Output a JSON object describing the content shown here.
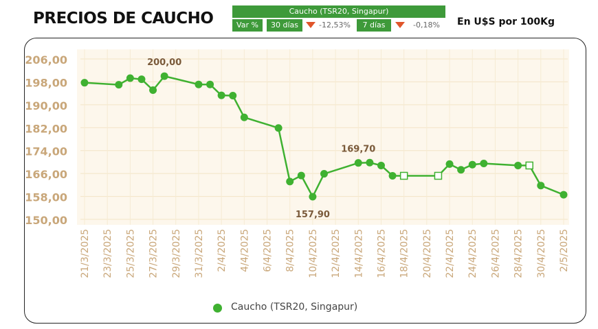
{
  "header": {
    "title": "PRECIOS DE CAUCHO",
    "units": "En U$S por 100Kg"
  },
  "summary_box": {
    "title": "Caucho (TSR20, Singapur)",
    "var_label": "Var %",
    "period1_label": "30 días",
    "period1_value": "-12,53%",
    "period2_label": "7 días",
    "period2_value": "-0,18%"
  },
  "legend": {
    "label": "Caucho (TSR20, Singapur)"
  },
  "colors": {
    "line": "#3fb131",
    "down_arrow": "#e0552a",
    "axis_text": "#c9a77a",
    "box_green": "#3e9a3a"
  },
  "chart_data": {
    "type": "line",
    "series": [
      {
        "name": "Caucho (TSR20, Singapur)",
        "points": [
          {
            "x": "21/3/2025",
            "y": 197.7
          },
          {
            "x": "24/3/2025",
            "y": 197.0
          },
          {
            "x": "25/3/2025",
            "y": 199.3
          },
          {
            "x": "26/3/2025",
            "y": 198.9
          },
          {
            "x": "27/3/2025",
            "y": 195.1
          },
          {
            "x": "28/3/2025",
            "y": 200.0
          },
          {
            "x": "31/3/2025",
            "y": 197.1
          },
          {
            "x": "1/4/2025",
            "y": 197.1
          },
          {
            "x": "2/4/2025",
            "y": 193.3
          },
          {
            "x": "3/4/2025",
            "y": 193.2
          },
          {
            "x": "4/4/2025",
            "y": 185.6
          },
          {
            "x": "7/4/2025",
            "y": 181.9
          },
          {
            "x": "8/4/2025",
            "y": 163.2
          },
          {
            "x": "9/4/2025",
            "y": 165.3
          },
          {
            "x": "10/4/2025",
            "y": 157.9
          },
          {
            "x": "11/4/2025",
            "y": 165.9
          },
          {
            "x": "14/4/2025",
            "y": 169.7
          },
          {
            "x": "15/4/2025",
            "y": 169.8
          },
          {
            "x": "16/4/2025",
            "y": 168.8
          },
          {
            "x": "17/4/2025",
            "y": 165.2
          },
          {
            "x": "18/4/2025",
            "y": 165.2,
            "marker": "open"
          },
          {
            "x": "21/4/2025",
            "y": 165.2,
            "marker": "open"
          },
          {
            "x": "22/4/2025",
            "y": 169.3
          },
          {
            "x": "23/4/2025",
            "y": 167.3
          },
          {
            "x": "24/4/2025",
            "y": 169.1
          },
          {
            "x": "25/4/2025",
            "y": 169.5
          },
          {
            "x": "28/4/2025",
            "y": 168.8
          },
          {
            "x": "29/4/2025",
            "y": 168.8,
            "marker": "open"
          },
          {
            "x": "30/4/2025",
            "y": 161.8
          },
          {
            "x": "2/5/2025",
            "y": 158.6
          }
        ]
      }
    ],
    "x_ticks": [
      "21/3/2025",
      "23/3/2025",
      "25/3/2025",
      "27/3/2025",
      "29/3/2025",
      "31/3/2025",
      "2/4/2025",
      "4/4/2025",
      "6/4/2025",
      "8/4/2025",
      "10/4/2025",
      "12/4/2025",
      "14/4/2025",
      "16/4/2025",
      "18/4/2025",
      "20/4/2025",
      "22/4/2025",
      "24/4/2025",
      "26/4/2025",
      "28/4/2025",
      "30/4/2025",
      "2/5/2025"
    ],
    "y_ticks": [
      "206,00",
      "198,00",
      "190,00",
      "182,00",
      "174,00",
      "166,00",
      "158,00",
      "150,00"
    ],
    "ylim": [
      150,
      206
    ],
    "xlim": [
      "21/3/2025",
      "2/5/2025"
    ],
    "annotations": [
      {
        "x": "28/3/2025",
        "y": 200.0,
        "text": "200,00",
        "position": "above"
      },
      {
        "x": "14/4/2025",
        "y": 169.7,
        "text": "169,70",
        "position": "above"
      },
      {
        "x": "10/4/2025",
        "y": 157.9,
        "text": "157,90",
        "position": "below"
      }
    ],
    "grid": true,
    "legend_position": "bottom"
  }
}
